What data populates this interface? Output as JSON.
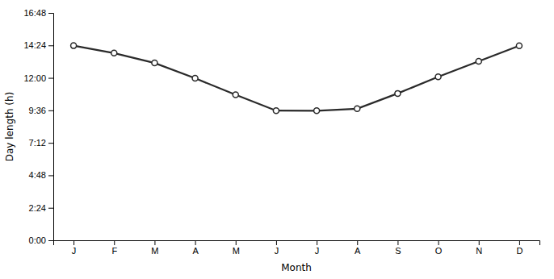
{
  "chart_data": {
    "type": "line",
    "categories": [
      "J",
      "F",
      "M",
      "A",
      "M",
      "J",
      "J",
      "A",
      "S",
      "O",
      "N",
      "D"
    ],
    "values": [
      14.38,
      13.83,
      13.1,
      11.97,
      10.75,
      9.58,
      9.57,
      9.72,
      10.85,
      12.08,
      13.22,
      14.37
    ],
    "xlabel": "Month",
    "ylabel": "Day length (h)",
    "ylim": [
      0,
      16.8
    ],
    "yticks": [
      {
        "value": 0,
        "label": "0:00"
      },
      {
        "value": 2.4,
        "label": "2:24"
      },
      {
        "value": 4.8,
        "label": "4:48"
      },
      {
        "value": 7.2,
        "label": "7:12"
      },
      {
        "value": 9.6,
        "label": "9:36"
      },
      {
        "value": 12.0,
        "label": "12:00"
      },
      {
        "value": 14.4,
        "label": "14:24"
      },
      {
        "value": 16.8,
        "label": "16:48"
      }
    ],
    "color": "#2a2a2a",
    "marker": "circle",
    "grid": false
  }
}
